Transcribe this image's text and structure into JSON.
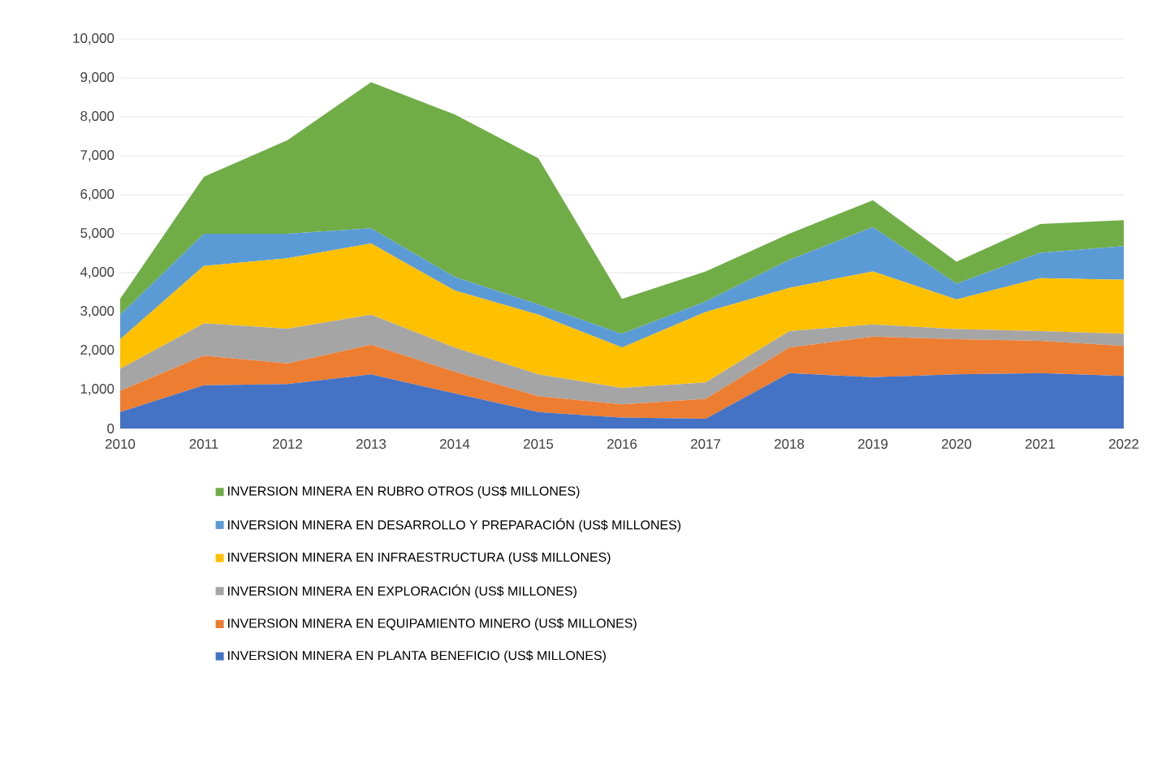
{
  "chart_data": {
    "type": "area",
    "stacked": true,
    "categories": [
      "2010",
      "2011",
      "2012",
      "2013",
      "2014",
      "2015",
      "2016",
      "2017",
      "2018",
      "2019",
      "2020",
      "2021",
      "2022"
    ],
    "ylim": [
      0,
      10000
    ],
    "yticks": [
      0,
      {
        "value": 1000,
        "label": "1,000"
      },
      {
        "value": 2000,
        "label": "2,000"
      },
      {
        "value": 3000,
        "label": "3,000"
      },
      {
        "value": 4000,
        "label": "4,000"
      },
      {
        "value": 5000,
        "label": "5,000"
      },
      {
        "value": 6000,
        "label": "6,000"
      },
      {
        "value": 7000,
        "label": "7,000"
      },
      {
        "value": 8000,
        "label": "8,000"
      },
      {
        "value": 9000,
        "label": "9,000"
      },
      {
        "value": 10000,
        "label": "10,000"
      }
    ],
    "grid": "y",
    "legend": "bottom",
    "series": [
      {
        "name": "INVERSION MINERA EN PLANTA BENEFICIO (US$ MILLONES)",
        "color": "#4472c4",
        "values": [
          420,
          1110,
          1140,
          1390,
          900,
          420,
          280,
          250,
          1420,
          1320,
          1390,
          1420,
          1350
        ]
      },
      {
        "name": "INVERSION MINERA EN EQUIPAMIENTO MINERO (US$ MILLONES)",
        "color": "#ed7d31",
        "values": [
          550,
          760,
          530,
          760,
          560,
          410,
          340,
          510,
          660,
          1040,
          900,
          830,
          770
        ]
      },
      {
        "name": "INVERSION MINERA EN EXPLORACIÓN (US$ MILLONES)",
        "color": "#a5a5a5",
        "values": [
          560,
          830,
          890,
          770,
          620,
          560,
          420,
          420,
          420,
          310,
          260,
          250,
          310
        ]
      },
      {
        "name": "INVERSION MINERA EN INFRAESTRUCTURA (US$ MILLONES)",
        "color": "#ffc000",
        "values": [
          760,
          1470,
          1810,
          1830,
          1460,
          1530,
          1040,
          1810,
          1110,
          1360,
          760,
          1360,
          1390
        ]
      },
      {
        "name": "INVERSION MINERA EN DESARROLLO Y PREPARACIÓN (US$ MILLONES)",
        "color": "#5b9bd5",
        "values": [
          630,
          830,
          630,
          390,
          350,
          270,
          350,
          270,
          720,
          1140,
          410,
          650,
          860
        ]
      },
      {
        "name": "INVERSION MINERA EN RUBRO OTROS (US$ MILLONES)",
        "color": "#70ad47",
        "values": [
          410,
          1460,
          2400,
          3750,
          4170,
          3750,
          900,
          770,
          670,
          690,
          560,
          740,
          670
        ]
      }
    ]
  }
}
